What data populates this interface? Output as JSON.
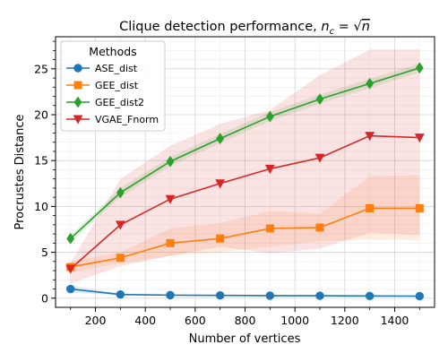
{
  "chart_data": {
    "type": "line",
    "title_prefix": "Clique detection performance, ",
    "title_math": "n",
    "title_math_sub": "c",
    "title_math_rest": " = √",
    "title_math_radicand": "n",
    "xlabel": "Number of vertices",
    "ylabel": "Procrustes Distance",
    "xlim": [
      40,
      1560
    ],
    "ylim": [
      -1,
      28.5
    ],
    "xticks": [
      200,
      400,
      600,
      800,
      1000,
      1200,
      1400
    ],
    "yticks": [
      0,
      5,
      10,
      15,
      20,
      25
    ],
    "grid": true,
    "legend": {
      "title": "Methods",
      "position": "upper-left"
    },
    "x": [
      100,
      300,
      500,
      700,
      900,
      1100,
      1300,
      1500
    ],
    "series": [
      {
        "name": "ASE_dist",
        "color": "#1f77b4",
        "marker": "circle",
        "values": [
          1.0,
          0.4,
          0.33,
          0.3,
          0.28,
          0.26,
          0.24,
          0.22
        ],
        "lower": [
          0.6,
          0.3,
          0.25,
          0.22,
          0.2,
          0.18,
          0.17,
          0.16
        ],
        "upper": [
          1.4,
          0.5,
          0.42,
          0.38,
          0.36,
          0.34,
          0.32,
          0.3
        ]
      },
      {
        "name": "GEE_dist",
        "color": "#ff7f0e",
        "marker": "square",
        "values": [
          3.4,
          4.4,
          6.0,
          6.5,
          7.6,
          7.7,
          9.8,
          9.8
        ],
        "lower": [
          2.8,
          3.8,
          4.6,
          5.0,
          5.6,
          6.2,
          6.4,
          6.3
        ],
        "upper": [
          4.0,
          5.0,
          7.6,
          8.2,
          9.5,
          9.2,
          13.3,
          13.4
        ]
      },
      {
        "name": "GEE_dist2",
        "color": "#2ca02c",
        "marker": "diamond",
        "values": [
          6.5,
          11.5,
          14.9,
          17.4,
          19.8,
          21.7,
          23.4,
          25.1
        ],
        "lower": [
          6.1,
          11.0,
          14.4,
          16.9,
          19.3,
          21.2,
          22.9,
          24.6
        ],
        "upper": [
          6.9,
          12.0,
          15.4,
          17.9,
          20.3,
          22.2,
          23.9,
          25.6
        ]
      },
      {
        "name": "VGAE_Fnorm",
        "color": "#d62728",
        "marker": "triangle-down",
        "values": [
          3.2,
          8.0,
          10.8,
          12.5,
          14.1,
          15.3,
          17.7,
          17.5
        ],
        "lower": [
          1.6,
          3.5,
          4.6,
          5.6,
          4.9,
          5.4,
          7.1,
          6.9
        ],
        "upper": [
          3.8,
          13.0,
          16.6,
          19.0,
          20.5,
          24.3,
          27.1,
          27.1
        ]
      }
    ]
  }
}
